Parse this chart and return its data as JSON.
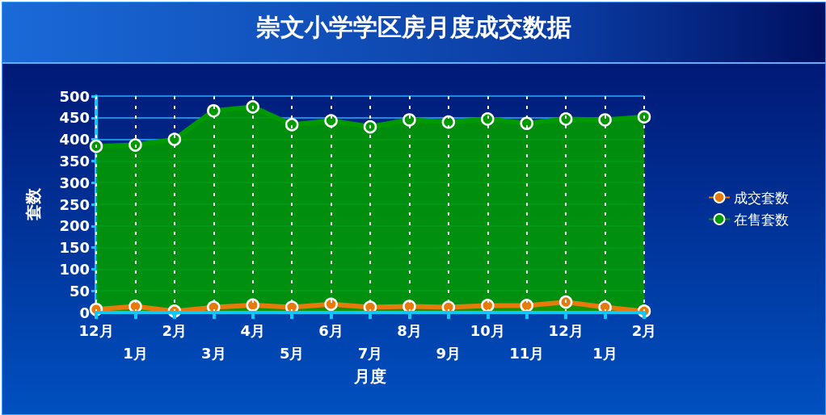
{
  "chart_data": {
    "type": "area",
    "title": "崇文小学学区房月度成交数据",
    "xlabel": "月度",
    "ylabel": "套数",
    "categories": [
      "12月",
      "1月",
      "2月",
      "3月",
      "4月",
      "5月",
      "6月",
      "7月",
      "8月",
      "9月",
      "10月",
      "11月",
      "12月",
      "1月",
      "2月"
    ],
    "series": [
      {
        "name": "成交套数",
        "color": "#e87a0c",
        "values": [
          7,
          14,
          3,
          12,
          17,
          12,
          19,
          12,
          14,
          12,
          16,
          16,
          24,
          12,
          3
        ]
      },
      {
        "name": "在售套数",
        "color": "#009900",
        "values": [
          384,
          387,
          400,
          466,
          475,
          434,
          443,
          429,
          445,
          440,
          447,
          437,
          447,
          445,
          452
        ]
      }
    ],
    "ylim": [
      0,
      500
    ],
    "yticks": [
      0,
      50,
      100,
      150,
      200,
      250,
      300,
      350,
      400,
      450,
      500
    ],
    "grid": true,
    "legend": "right",
    "marker": "circle"
  }
}
